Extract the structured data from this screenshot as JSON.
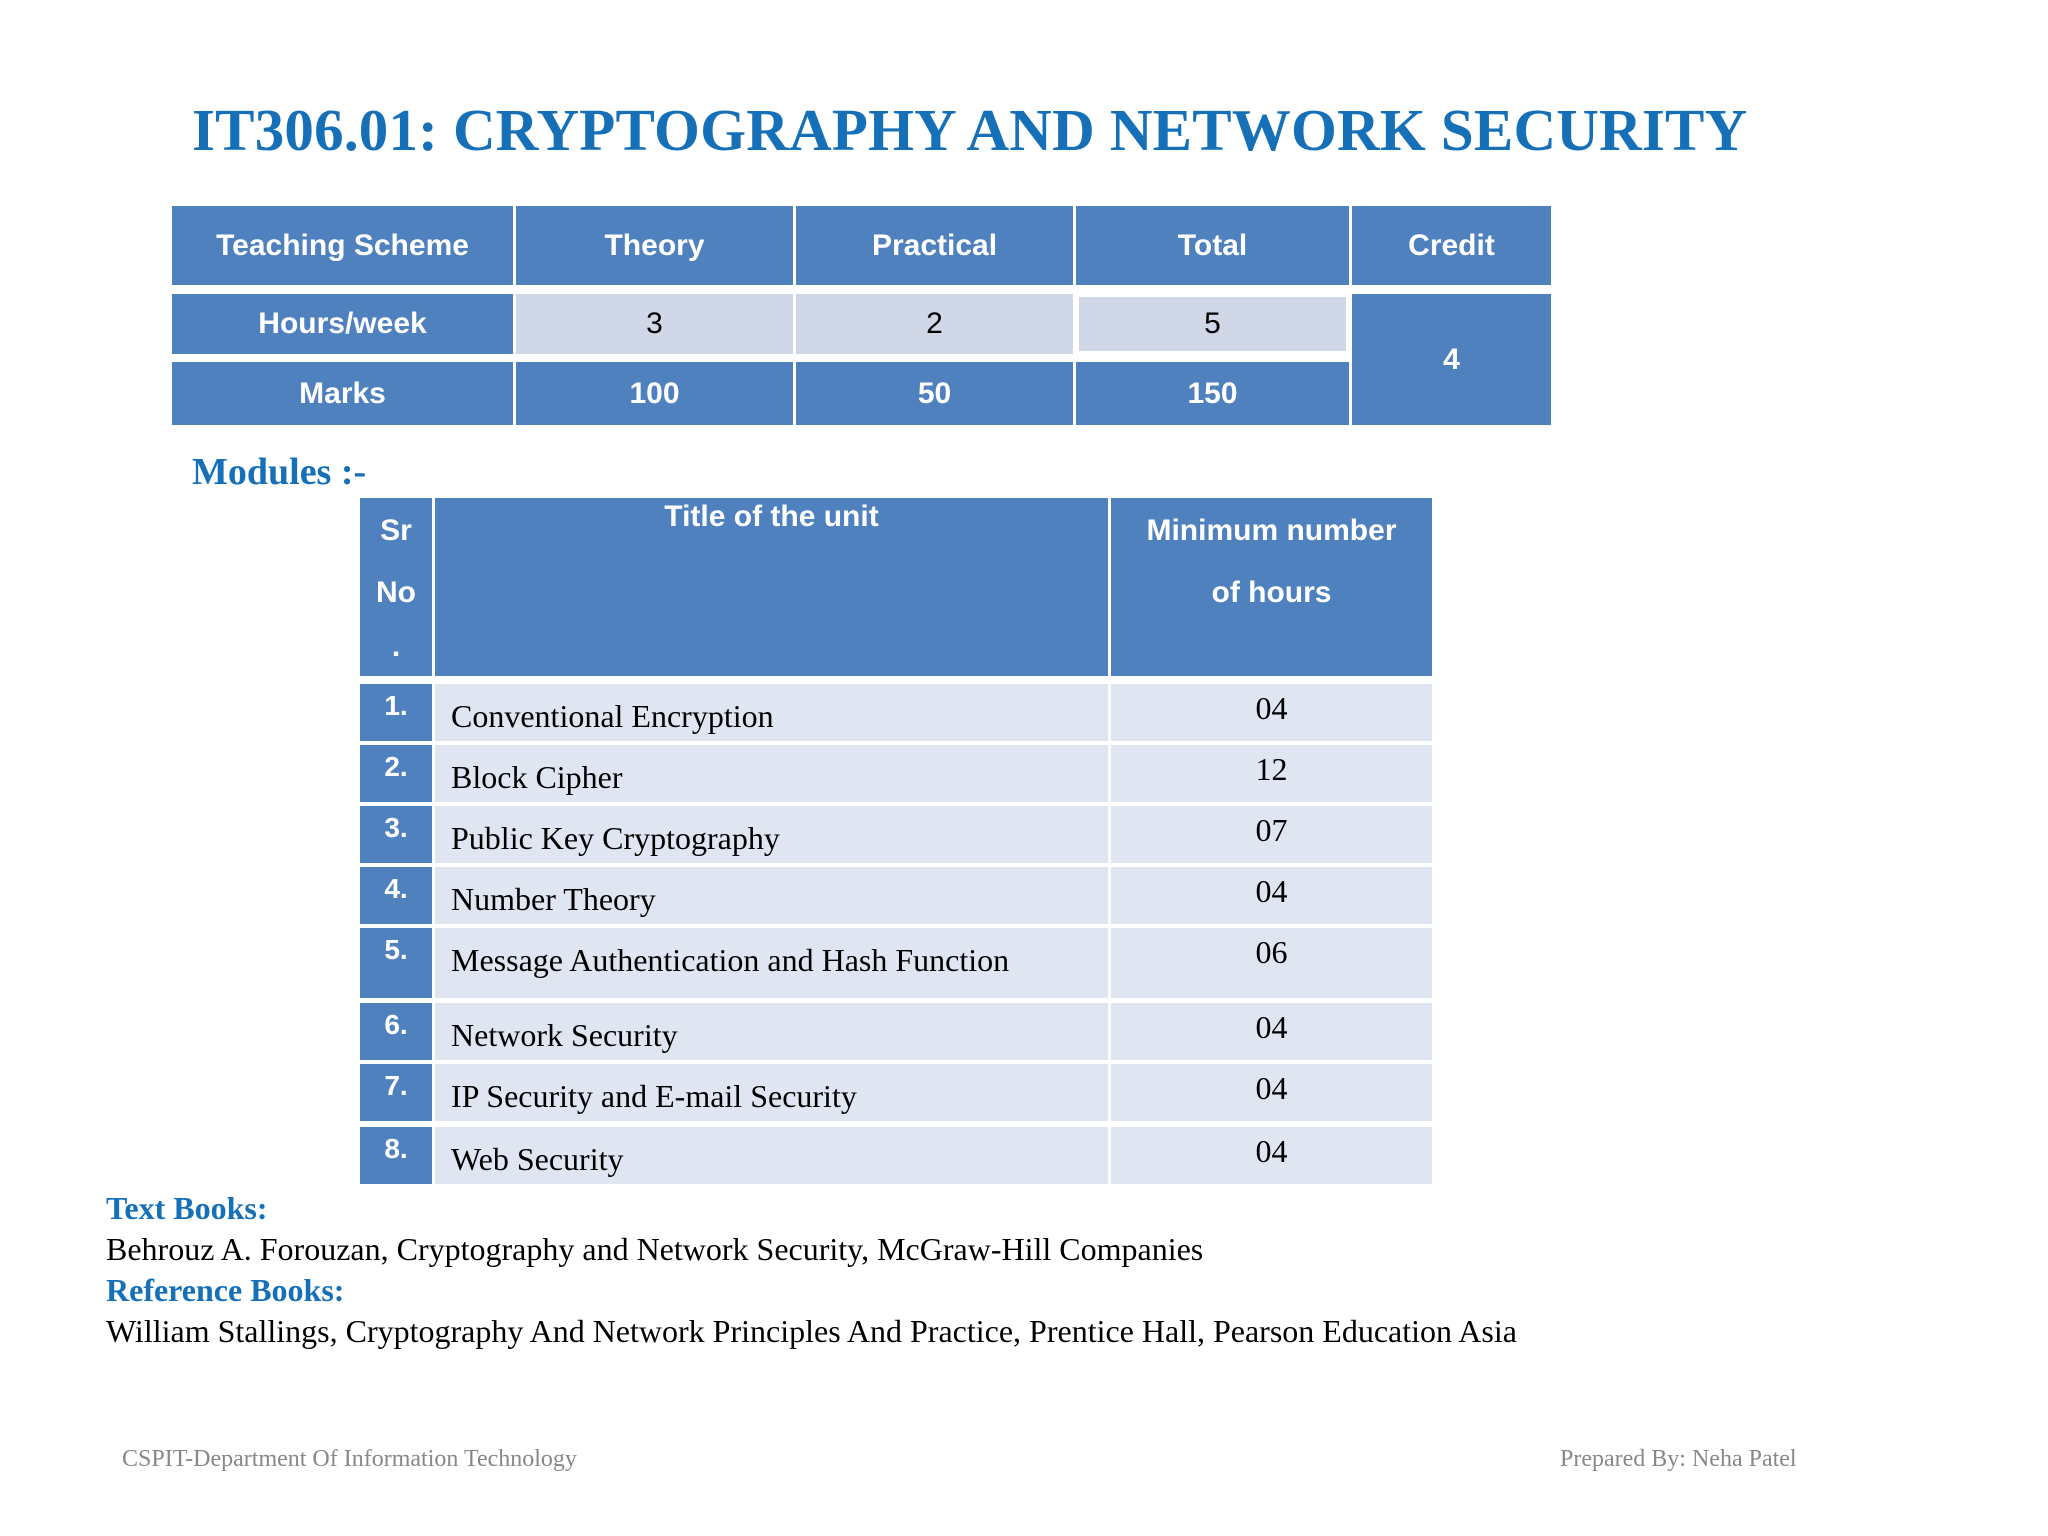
{
  "title": "IT306.01: CRYPTOGRAPHY AND NETWORK SECURITY",
  "scheme": {
    "headers": [
      "Teaching Scheme",
      "Theory",
      "Practical",
      "Total",
      "Credit"
    ],
    "hours_label": "Hours/week",
    "hours": [
      "3",
      "2",
      "5"
    ],
    "marks_label": "Marks",
    "marks": [
      "100",
      "50",
      "150"
    ],
    "credit": "4"
  },
  "modules": {
    "label": "Modules :-",
    "header_sr": [
      "Sr",
      "No",
      "."
    ],
    "header_title": "Title of the unit",
    "header_hours": [
      "Minimum number",
      "of hours"
    ],
    "rows": [
      {
        "num": "1.",
        "title": "Conventional Encryption",
        "hours": "04"
      },
      {
        "num": "2.",
        "title": "Block Cipher",
        "hours": "12"
      },
      {
        "num": "3.",
        "title": "Public Key Cryptography",
        "hours": "07"
      },
      {
        "num": "4.",
        "title": "Number Theory",
        "hours": "04"
      },
      {
        "num": "5.",
        "title": "Message Authentication and Hash Function",
        "hours": "06"
      },
      {
        "num": "6.",
        "title": "Network Security",
        "hours": "04"
      },
      {
        "num": "7.",
        "title": "IP Security and E-mail Security",
        "hours": "04"
      },
      {
        "num": "8.",
        "title": "Web Security",
        "hours": "04"
      }
    ]
  },
  "text_books": {
    "heading": "Text Books:",
    "item": "Behrouz A. Forouzan, Cryptography and Network Security, McGraw-Hill Companies"
  },
  "reference_books": {
    "heading": "Reference Books:",
    "item": "William Stallings, Cryptography And Network Principles And Practice, Prentice Hall, Pearson Education Asia"
  },
  "footer": {
    "left": "CSPIT-Department Of Information Technology",
    "right": "Prepared By: Neha Patel"
  },
  "colors": {
    "title_blue": "#1570b8",
    "header_fill": "#4e81bd",
    "row_fill": "#dfe5f1"
  }
}
